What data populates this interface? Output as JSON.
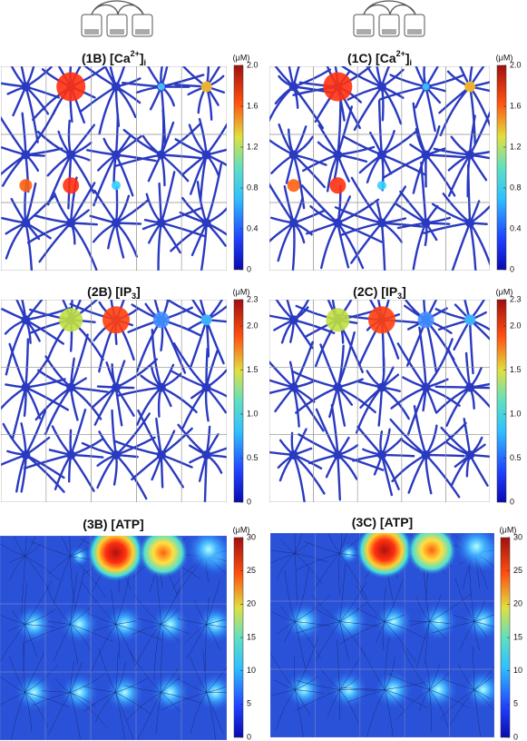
{
  "panels": [
    {
      "title": [
        {
          "text": "(1B) [Ca"
        },
        {
          "text": "2+",
          "shift": "super"
        },
        {
          "text": "]"
        },
        {
          "text": "i",
          "shift": "sub"
        }
      ],
      "units": "(μM)",
      "kind": "calcium",
      "ticks": [
        {
          "value": 2,
          "label": "2.0"
        },
        1.6,
        1.2,
        0.8,
        0.4,
        0
      ]
    },
    {
      "title": [
        {
          "text": "(1C) [Ca"
        },
        {
          "text": "2+",
          "shift": "super"
        },
        {
          "text": "]"
        },
        {
          "text": "i",
          "shift": "sub"
        }
      ],
      "units": "(μM)",
      "kind": "calcium",
      "ticks": [
        {
          "value": 2,
          "label": "2.0"
        },
        1.6,
        1.2,
        0.8,
        0.4,
        0
      ]
    },
    {
      "title": [
        {
          "text": "(2B) [IP"
        },
        {
          "text": "3",
          "shift": "sub"
        },
        {
          "text": "]"
        }
      ],
      "units": "(μM)",
      "kind": "ip3",
      "ticks": [
        2.3,
        {
          "value": 2,
          "label": "2.0"
        },
        1.5,
        {
          "value": 1,
          "label": "1.0"
        },
        0.5,
        0
      ]
    },
    {
      "title": [
        {
          "text": "(2C) [IP"
        },
        {
          "text": "3",
          "shift": "sub"
        },
        {
          "text": "]"
        }
      ],
      "units": "(μM)",
      "kind": "ip3",
      "ticks": [
        2.3,
        {
          "value": 2,
          "label": "2.0"
        },
        1.5,
        {
          "value": 1,
          "label": "1.0"
        },
        0.5,
        0
      ]
    },
    {
      "title": [
        {
          "text": "(3B) [ATP]"
        }
      ],
      "units": "(μM)",
      "kind": "atp",
      "ticks": [
        30,
        25,
        20,
        15,
        10,
        5,
        0
      ]
    },
    {
      "title": [
        {
          "text": "(3C) [ATP]"
        }
      ],
      "units": "(μM)",
      "kind": "atp",
      "ticks": [
        30,
        25,
        20,
        15,
        10,
        5,
        0
      ]
    }
  ]
}
